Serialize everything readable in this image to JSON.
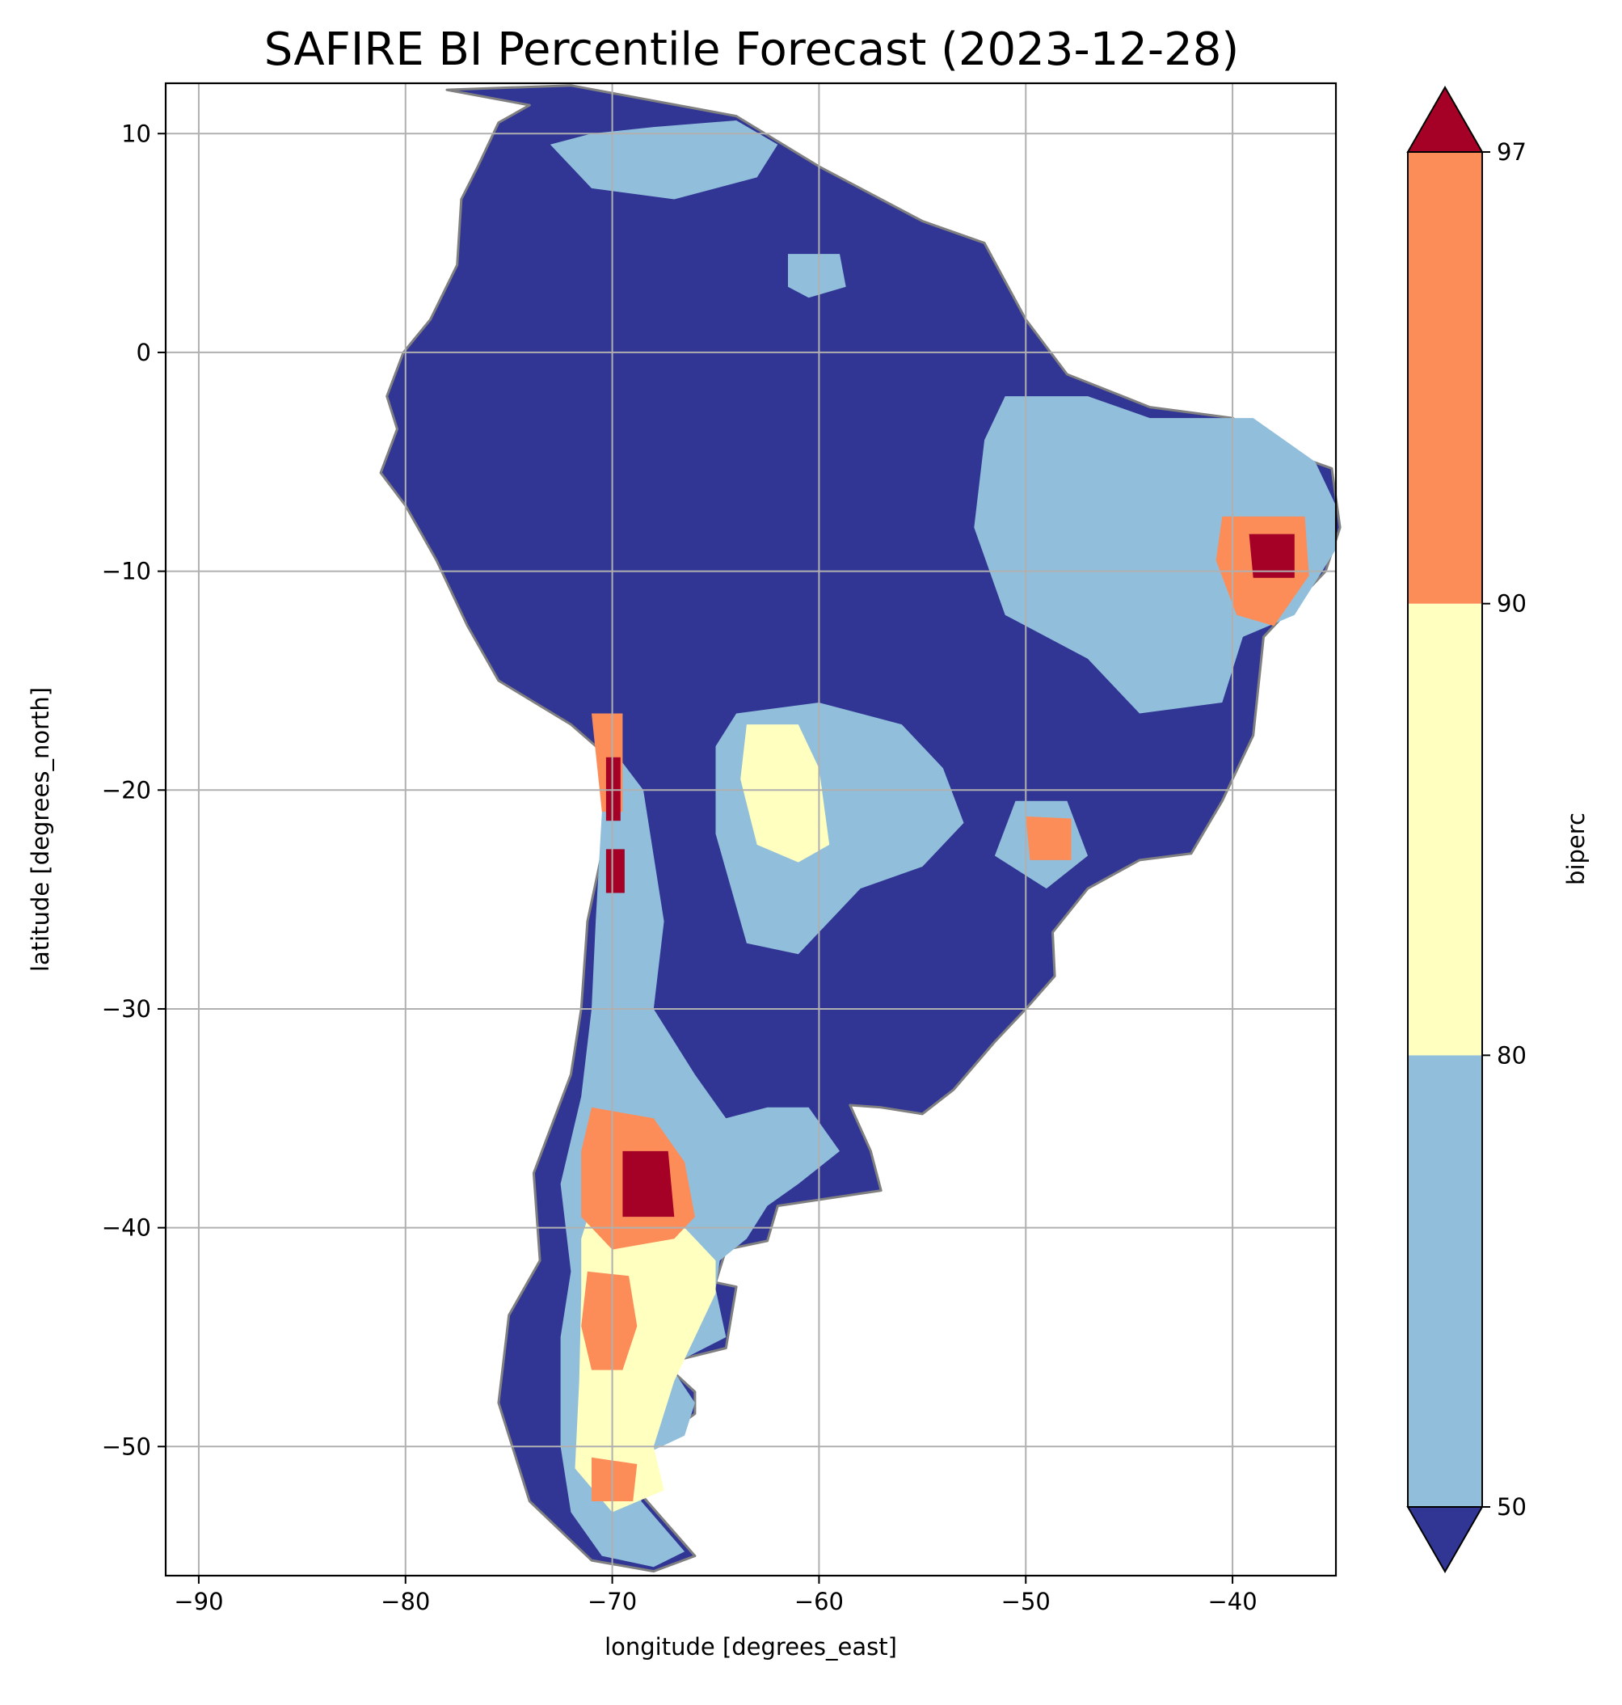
{
  "chart_data": {
    "type": "heatmap",
    "title": "SAFIRE BI Percentile Forecast (2023-12-28)",
    "xlabel": "longitude [degrees_east]",
    "ylabel": "latitude [degrees_north]",
    "xlim": [
      -91.6,
      -35.0
    ],
    "ylim": [
      -55.9,
      12.3
    ],
    "xticks": [
      -90,
      -80,
      -70,
      -60,
      -50,
      -40
    ],
    "xtick_labels": [
      "−90",
      "−80",
      "−70",
      "−60",
      "−50",
      "−40"
    ],
    "yticks": [
      10,
      0,
      -10,
      -20,
      -30,
      -40,
      -50
    ],
    "ytick_labels": [
      "10",
      "0",
      "−10",
      "−20",
      "−30",
      "−40",
      "−50"
    ],
    "grid": true,
    "colorbar": {
      "label": "biperc",
      "ticks": [
        50,
        80,
        90,
        97
      ],
      "tick_labels": [
        "50",
        "80",
        "90",
        "97"
      ],
      "extend": "both",
      "bins": [
        {
          "range": "<50",
          "color": "#313695"
        },
        {
          "range": "50-80",
          "color": "#91bfdb"
        },
        {
          "range": "80-90",
          "color": "#ffffbf"
        },
        {
          "range": "90-97",
          "color": "#fc8d59"
        },
        {
          "range": ">97",
          "color": "#a50026"
        }
      ]
    },
    "regions": [
      {
        "level": "<50",
        "color": "#313695",
        "lonlat": [
          [
            -78,
            12
          ],
          [
            -72,
            12.2
          ],
          [
            -64,
            10.8
          ],
          [
            -60,
            8.5
          ],
          [
            -55,
            6
          ],
          [
            -52,
            5
          ],
          [
            -50,
            1.5
          ],
          [
            -48,
            -1
          ],
          [
            -44,
            -2.5
          ],
          [
            -40,
            -3
          ],
          [
            -37,
            -4.7
          ],
          [
            -35.2,
            -5.3
          ],
          [
            -34.8,
            -8
          ],
          [
            -35.5,
            -10
          ],
          [
            -38.5,
            -13
          ],
          [
            -39,
            -17.5
          ],
          [
            -40.5,
            -20.5
          ],
          [
            -42,
            -22.9
          ],
          [
            -44.5,
            -23.2
          ],
          [
            -47,
            -24.5
          ],
          [
            -48.7,
            -26.5
          ],
          [
            -48.6,
            -28.5
          ],
          [
            -50,
            -30
          ],
          [
            -51.5,
            -31.5
          ],
          [
            -53.5,
            -33.7
          ],
          [
            -55,
            -34.8
          ],
          [
            -57,
            -34.5
          ],
          [
            -58.5,
            -34.4
          ],
          [
            -57.5,
            -36.5
          ],
          [
            -57,
            -38.3
          ],
          [
            -62,
            -39
          ],
          [
            -62.5,
            -40.6
          ],
          [
            -64.5,
            -41
          ],
          [
            -65,
            -42.5
          ],
          [
            -64,
            -42.7
          ],
          [
            -64.5,
            -45.5
          ],
          [
            -67.5,
            -46.2
          ],
          [
            -66,
            -47.5
          ],
          [
            -66,
            -48.5
          ],
          [
            -68.3,
            -50.1
          ],
          [
            -68.5,
            -52.3
          ],
          [
            -66,
            -55
          ],
          [
            -68,
            -55.7
          ],
          [
            -71,
            -55.2
          ],
          [
            -74,
            -52.5
          ],
          [
            -75.5,
            -48
          ],
          [
            -75,
            -44
          ],
          [
            -73.5,
            -41.5
          ],
          [
            -73.8,
            -37.5
          ],
          [
            -72,
            -33
          ],
          [
            -71.5,
            -30
          ],
          [
            -71.2,
            -26
          ],
          [
            -70.3,
            -22
          ],
          [
            -70.3,
            -18.4
          ],
          [
            -72,
            -17
          ],
          [
            -75.5,
            -15
          ],
          [
            -77,
            -12.5
          ],
          [
            -78.5,
            -9.5
          ],
          [
            -80,
            -7
          ],
          [
            -81.2,
            -5.5
          ],
          [
            -80.4,
            -3.5
          ],
          [
            -80.9,
            -2
          ],
          [
            -80.1,
            0
          ],
          [
            -78.8,
            1.5
          ],
          [
            -77.5,
            4
          ],
          [
            -77.3,
            7
          ],
          [
            -76.5,
            8.5
          ],
          [
            -75.5,
            10.5
          ],
          [
            -74,
            11.3
          ]
        ]
      },
      {
        "level": "50-80",
        "color": "#91bfdb",
        "lonlat": [
          [
            -73,
            9.5
          ],
          [
            -71,
            10
          ],
          [
            -68,
            10.3
          ],
          [
            -64,
            10.6
          ],
          [
            -62,
            9.5
          ],
          [
            -63,
            8
          ],
          [
            -67,
            7
          ],
          [
            -71,
            7.5
          ]
        ]
      },
      {
        "level": "50-80",
        "color": "#91bfdb",
        "lonlat": [
          [
            -61.5,
            4.5
          ],
          [
            -59,
            4.5
          ],
          [
            -58.7,
            3
          ],
          [
            -60.5,
            2.5
          ],
          [
            -61.5,
            3
          ]
        ]
      },
      {
        "level": "50-80",
        "color": "#91bfdb",
        "lonlat": [
          [
            -51,
            -2
          ],
          [
            -47,
            -2
          ],
          [
            -44,
            -3
          ],
          [
            -39,
            -3
          ],
          [
            -36,
            -5
          ],
          [
            -35,
            -7
          ],
          [
            -35,
            -9
          ],
          [
            -37,
            -12
          ],
          [
            -39.5,
            -13
          ],
          [
            -40.5,
            -16
          ],
          [
            -44.5,
            -16.5
          ],
          [
            -47,
            -14
          ],
          [
            -51,
            -12
          ],
          [
            -52.5,
            -8
          ],
          [
            -52,
            -4
          ]
        ]
      },
      {
        "level": "50-80",
        "color": "#91bfdb",
        "lonlat": [
          [
            -64,
            -16.5
          ],
          [
            -60,
            -16
          ],
          [
            -56,
            -17
          ],
          [
            -54,
            -19
          ],
          [
            -53,
            -21.5
          ],
          [
            -55,
            -23.5
          ],
          [
            -58,
            -24.5
          ],
          [
            -61,
            -27.5
          ],
          [
            -63.5,
            -27
          ],
          [
            -65,
            -22
          ],
          [
            -65,
            -18
          ]
        ]
      },
      {
        "level": "50-80",
        "color": "#91bfdb",
        "lonlat": [
          [
            -50.5,
            -20.5
          ],
          [
            -48,
            -20.5
          ],
          [
            -47,
            -23
          ],
          [
            -49,
            -24.5
          ],
          [
            -51.5,
            -23
          ]
        ]
      },
      {
        "level": "50-80",
        "color": "#91bfdb",
        "lonlat": [
          [
            -70.5,
            -17.5
          ],
          [
            -68.5,
            -20
          ],
          [
            -67.5,
            -26
          ],
          [
            -68,
            -30
          ],
          [
            -66,
            -33
          ],
          [
            -64.5,
            -35
          ],
          [
            -62.5,
            -34.5
          ],
          [
            -60.5,
            -34.5
          ],
          [
            -59,
            -36.5
          ],
          [
            -61,
            -38
          ],
          [
            -62.5,
            -39
          ],
          [
            -63.5,
            -40.5
          ],
          [
            -64.8,
            -41.5
          ],
          [
            -65,
            -42.8
          ],
          [
            -64.5,
            -45
          ],
          [
            -67.2,
            -46.3
          ],
          [
            -66,
            -48
          ],
          [
            -66.5,
            -49.5
          ],
          [
            -68.3,
            -50.3
          ],
          [
            -68.6,
            -52.5
          ],
          [
            -66.5,
            -54.8
          ],
          [
            -68,
            -55.5
          ],
          [
            -70.5,
            -55
          ],
          [
            -72,
            -53
          ],
          [
            -72.5,
            -50
          ],
          [
            -72.5,
            -45
          ],
          [
            -72,
            -42
          ],
          [
            -72.5,
            -38
          ],
          [
            -71.5,
            -34
          ],
          [
            -71,
            -30
          ],
          [
            -70.8,
            -26
          ],
          [
            -70.5,
            -21
          ]
        ]
      },
      {
        "level": "80-90",
        "color": "#ffffbf",
        "lonlat": [
          [
            -63.5,
            -17
          ],
          [
            -61,
            -17
          ],
          [
            -60,
            -19
          ],
          [
            -59.5,
            -22.5
          ],
          [
            -61,
            -23.3
          ],
          [
            -63,
            -22.5
          ],
          [
            -63.8,
            -19.5
          ]
        ]
      },
      {
        "level": "80-90",
        "color": "#ffffbf",
        "lonlat": [
          [
            -71,
            -39
          ],
          [
            -67,
            -39.5
          ],
          [
            -65,
            -41.5
          ],
          [
            -65,
            -43
          ],
          [
            -66,
            -45
          ],
          [
            -67,
            -47
          ],
          [
            -68,
            -50
          ],
          [
            -67.5,
            -52
          ],
          [
            -70,
            -53
          ],
          [
            -71.8,
            -51
          ],
          [
            -71.6,
            -47
          ],
          [
            -71.5,
            -43
          ],
          [
            -71.5,
            -40.5
          ]
        ]
      },
      {
        "level": "90-97",
        "color": "#fc8d59",
        "lonlat": [
          [
            -71,
            -34.5
          ],
          [
            -68,
            -35
          ],
          [
            -66.5,
            -37
          ],
          [
            -66,
            -39.5
          ],
          [
            -67,
            -40.5
          ],
          [
            -70,
            -41
          ],
          [
            -71.5,
            -39.5
          ],
          [
            -71.5,
            -36.5
          ]
        ]
      },
      {
        "level": "90-97",
        "color": "#fc8d59",
        "lonlat": [
          [
            -71.2,
            -42
          ],
          [
            -69.2,
            -42.2
          ],
          [
            -68.8,
            -44.5
          ],
          [
            -69.5,
            -46.5
          ],
          [
            -71,
            -46.5
          ],
          [
            -71.5,
            -44.5
          ]
        ]
      },
      {
        "level": "90-97",
        "color": "#fc8d59",
        "lonlat": [
          [
            -71,
            -50.5
          ],
          [
            -68.8,
            -50.8
          ],
          [
            -69,
            -52.5
          ],
          [
            -71,
            -52.5
          ]
        ]
      },
      {
        "level": "90-97",
        "color": "#fc8d59",
        "lonlat": [
          [
            -40.5,
            -7.5
          ],
          [
            -36.5,
            -7.5
          ],
          [
            -36.3,
            -10.2
          ],
          [
            -38,
            -12.5
          ],
          [
            -39.8,
            -12
          ],
          [
            -40.8,
            -9.5
          ]
        ]
      },
      {
        "level": "90-97",
        "color": "#fc8d59",
        "lonlat": [
          [
            -50,
            -21.2
          ],
          [
            -47.8,
            -21.3
          ],
          [
            -47.8,
            -23.2
          ],
          [
            -49.8,
            -23.2
          ]
        ]
      },
      {
        "level": "90-97",
        "color": "#fc8d59",
        "lonlat": [
          [
            -71,
            -16.5
          ],
          [
            -69.5,
            -16.5
          ],
          [
            -69.5,
            -21
          ],
          [
            -70.5,
            -21
          ]
        ]
      },
      {
        "level": ">97",
        "color": "#a50026",
        "lonlat": [
          [
            -39.2,
            -8.3
          ],
          [
            -37,
            -8.3
          ],
          [
            -37,
            -10.3
          ],
          [
            -39,
            -10.3
          ]
        ]
      },
      {
        "level": ">97",
        "color": "#a50026",
        "lonlat": [
          [
            -70.3,
            -18.5
          ],
          [
            -69.6,
            -18.5
          ],
          [
            -69.6,
            -21.4
          ],
          [
            -70.3,
            -21.4
          ]
        ]
      },
      {
        "level": ">97",
        "color": "#a50026",
        "lonlat": [
          [
            -70.3,
            -22.7
          ],
          [
            -69.4,
            -22.7
          ],
          [
            -69.4,
            -24.7
          ],
          [
            -70.3,
            -24.7
          ]
        ]
      },
      {
        "level": ">97",
        "color": "#a50026",
        "lonlat": [
          [
            -69.5,
            -36.5
          ],
          [
            -67.3,
            -36.5
          ],
          [
            -67,
            -39.5
          ],
          [
            -69.5,
            -39.5
          ]
        ]
      }
    ]
  }
}
